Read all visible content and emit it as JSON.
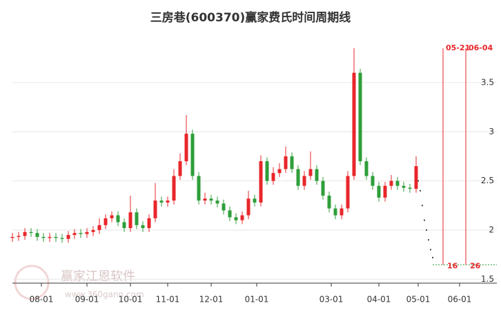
{
  "chart_data": {
    "type": "candlestick",
    "title": "三房巷(600370)赢家费氏时间周期线",
    "watermark": {
      "name": "赢家江恩软件",
      "url": "www.360gann.com"
    },
    "up_color": "#e8262a",
    "down_color": "#2e9e3a",
    "x": [
      0,
      3,
      6,
      9,
      12,
      15,
      18,
      21,
      24,
      27,
      30,
      33,
      36,
      39,
      42,
      45,
      48,
      51,
      54,
      57,
      60,
      63,
      66,
      69,
      72,
      75,
      78,
      81,
      84,
      87,
      90,
      93,
      96,
      99,
      102,
      105,
      108,
      111,
      114,
      117,
      120,
      123,
      126,
      129,
      132,
      135,
      138,
      141,
      144,
      147,
      150,
      153,
      156,
      159,
      162,
      165,
      168,
      171,
      174,
      177,
      180,
      183,
      186,
      189,
      192,
      195
    ],
    "open": [
      1.92,
      1.93,
      1.94,
      1.98,
      1.97,
      1.93,
      1.92,
      1.93,
      1.92,
      1.91,
      1.95,
      1.97,
      1.96,
      1.98,
      2.0,
      2.05,
      2.12,
      2.15,
      2.08,
      2.02,
      2.18,
      2.05,
      2.02,
      2.12,
      2.3,
      2.28,
      2.3,
      2.55,
      2.7,
      2.98,
      2.55,
      2.3,
      2.32,
      2.3,
      2.27,
      2.2,
      2.13,
      2.1,
      2.15,
      2.32,
      2.28,
      2.7,
      2.5,
      2.58,
      2.62,
      2.75,
      2.62,
      2.45,
      2.55,
      2.62,
      2.5,
      2.35,
      2.22,
      2.15,
      2.22,
      2.55,
      3.6,
      2.7,
      2.55,
      2.45,
      2.33,
      2.45,
      2.5,
      2.45,
      2.43,
      2.42
    ],
    "high": [
      1.97,
      1.98,
      2.02,
      2.02,
      2.01,
      1.97,
      1.97,
      1.97,
      1.96,
      1.99,
      2.01,
      2.01,
      2.02,
      2.04,
      2.12,
      2.16,
      2.19,
      2.19,
      2.12,
      2.35,
      2.22,
      2.09,
      2.16,
      2.48,
      2.34,
      2.34,
      2.62,
      2.78,
      3.17,
      3.02,
      2.59,
      2.38,
      2.36,
      2.34,
      2.31,
      2.24,
      2.17,
      2.19,
      2.4,
      2.36,
      2.76,
      2.74,
      2.64,
      2.68,
      2.85,
      2.79,
      2.66,
      2.6,
      2.8,
      2.66,
      2.54,
      2.39,
      2.26,
      2.26,
      2.6,
      3.85,
      3.64,
      2.74,
      2.59,
      2.49,
      2.49,
      2.56,
      2.54,
      2.49,
      2.47,
      2.75
    ],
    "low": [
      1.88,
      1.89,
      1.9,
      1.93,
      1.89,
      1.88,
      1.88,
      1.88,
      1.87,
      1.87,
      1.91,
      1.92,
      1.92,
      1.94,
      1.96,
      2.01,
      2.08,
      2.04,
      1.98,
      1.98,
      2.01,
      1.98,
      1.98,
      2.08,
      2.24,
      2.24,
      2.26,
      2.51,
      2.66,
      2.51,
      2.26,
      2.26,
      2.26,
      2.23,
      2.16,
      2.09,
      2.06,
      2.06,
      2.11,
      2.24,
      2.24,
      2.46,
      2.46,
      2.54,
      2.58,
      2.58,
      2.41,
      2.41,
      2.51,
      2.46,
      2.31,
      2.18,
      2.11,
      2.11,
      2.18,
      2.51,
      2.66,
      2.51,
      2.41,
      2.29,
      2.29,
      2.41,
      2.41,
      2.39,
      2.38,
      2.38
    ],
    "close": [
      1.93,
      1.94,
      1.98,
      1.97,
      1.93,
      1.92,
      1.93,
      1.92,
      1.91,
      1.95,
      1.97,
      1.96,
      1.98,
      2.0,
      2.05,
      2.12,
      2.15,
      2.08,
      2.02,
      2.18,
      2.05,
      2.02,
      2.12,
      2.3,
      2.28,
      2.3,
      2.55,
      2.7,
      2.98,
      2.55,
      2.3,
      2.32,
      2.3,
      2.27,
      2.2,
      2.13,
      2.1,
      2.15,
      2.32,
      2.28,
      2.7,
      2.5,
      2.58,
      2.62,
      2.75,
      2.62,
      2.45,
      2.55,
      2.62,
      2.5,
      2.35,
      2.22,
      2.15,
      2.22,
      2.55,
      3.6,
      2.7,
      2.55,
      2.45,
      2.33,
      2.45,
      2.5,
      2.45,
      2.43,
      2.42,
      2.65
    ],
    "projection": {
      "x": [
        196,
        197,
        198,
        199,
        200,
        201,
        202,
        203
      ],
      "values": [
        2.5,
        2.4,
        2.25,
        2.1,
        2.0,
        1.9,
        1.8,
        1.72
      ]
    },
    "cycle_lines": [
      {
        "x": 208,
        "label": "05-21",
        "days": 16
      },
      {
        "x": 219,
        "label": "06-04",
        "days": 26
      }
    ],
    "cycle_top": 3.85,
    "baseline": {
      "value": 1.647,
      "x": [
        203,
        234
      ]
    },
    "xlim": [
      0,
      234
    ],
    "xticks": [
      {
        "value": 14,
        "label": "08-01"
      },
      {
        "value": 36,
        "label": "09-01"
      },
      {
        "value": 57,
        "label": "10-01"
      },
      {
        "value": 75,
        "label": "11-01"
      },
      {
        "value": 96,
        "label": "12-01"
      },
      {
        "value": 118,
        "label": "01-01"
      },
      {
        "value": 154,
        "label": "03-01"
      },
      {
        "value": 177,
        "label": "04-01"
      },
      {
        "value": 196,
        "label": "05-01"
      },
      {
        "value": 216,
        "label": "06-01"
      }
    ],
    "ylim": [
      1.46,
      4.06
    ],
    "yticks": [
      1.5,
      2,
      2.5,
      3,
      3.5
    ],
    "grid": true
  }
}
